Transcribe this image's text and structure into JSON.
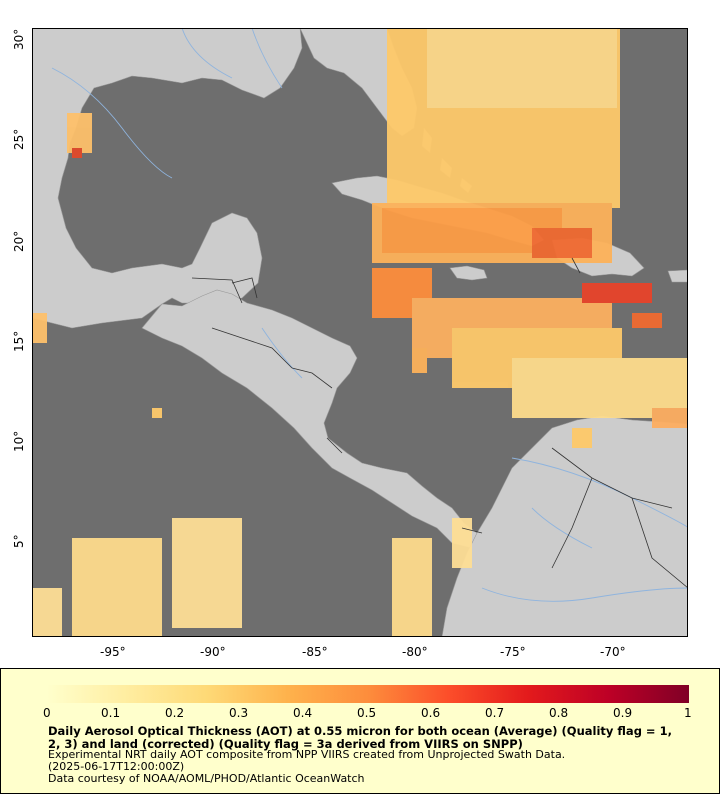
{
  "map": {
    "x_ticks": [
      "-95°",
      "-90°",
      "-85°",
      "-80°",
      "-75°",
      "-70°"
    ],
    "y_ticks": [
      "30°",
      "25°",
      "20°",
      "15°",
      "10°",
      "5°"
    ],
    "colors": {
      "ocean": "#6e6e6e",
      "land": "#cccccc",
      "rivers": "#8fb4de",
      "borders": "#333333",
      "frame": "#000000"
    }
  },
  "legend": {
    "ticks": [
      "0",
      "0.1",
      "0.2",
      "0.3",
      "0.4",
      "0.5",
      "0.6",
      "0.7",
      "0.8",
      "0.9",
      "1"
    ],
    "title": "Daily Aerosol Optical Thickness (AOT) at 0.55 micron for both ocean (Average) (Quality flag = 1, 2, 3) and land (corrected) (Quality flag = 3a derived from VIIRS on SNPP)",
    "line1": "Experimental NRT daily AOT composite from NPP VIIRS created from Unprojected Swath Data.",
    "line2": "(2025-06-17T12:00:00Z)",
    "line3": "Data courtesy of NOAA/AOML/PHOD/Atlantic OceanWatch",
    "colormap": [
      "#ffffcc",
      "#ffeda0",
      "#fed976",
      "#feb24c",
      "#fd8d3c",
      "#fc4e2a",
      "#e31a1c",
      "#bd0026",
      "#800026"
    ]
  }
}
